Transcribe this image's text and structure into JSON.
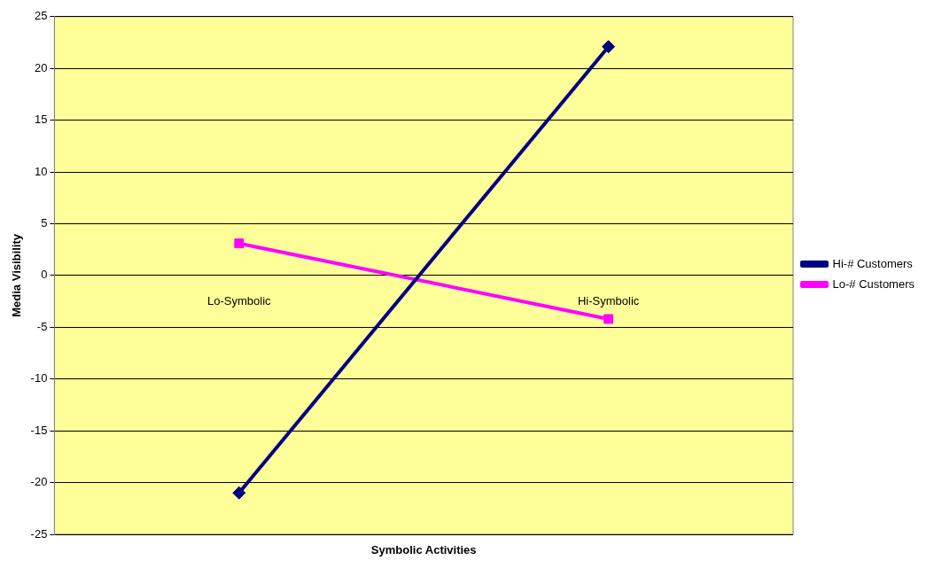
{
  "chart_data": {
    "type": "line",
    "xlabel": "Symbolic Activities",
    "ylabel": "Media Visibility",
    "categories": [
      "Lo-Symbolic",
      "Hi-Symbolic"
    ],
    "series": [
      {
        "name": "Hi-# Customers",
        "color": "#000080",
        "values": [
          -21,
          22.1
        ],
        "marker": "diamond"
      },
      {
        "name": "Lo-# Customers",
        "color": "#ff00ff",
        "values": [
          3.1,
          -4.2
        ],
        "marker": "square"
      }
    ],
    "ylim": [
      -25,
      25
    ],
    "yticks": [
      -25,
      -20,
      -15,
      -10,
      -5,
      0,
      5,
      10,
      15,
      20,
      25
    ],
    "grid": "y",
    "legend": "right"
  }
}
